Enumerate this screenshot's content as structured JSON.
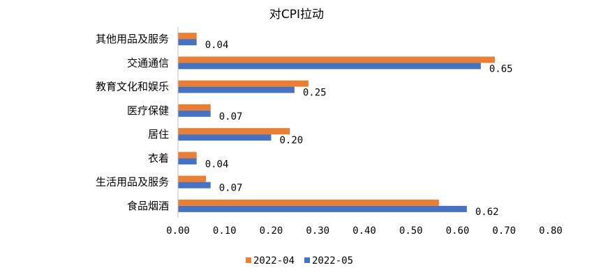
{
  "chart_data": {
    "type": "bar",
    "orientation": "horizontal",
    "title": "对CPI拉动",
    "categories": [
      "其他用品及服务",
      "交通通信",
      "教育文化和娱乐",
      "医疗保健",
      "居住",
      "衣着",
      "生活用品及服务",
      "食品烟酒"
    ],
    "series": [
      {
        "name": "2022-04",
        "values": [
          0.04,
          0.68,
          0.28,
          0.07,
          0.24,
          0.04,
          0.06,
          0.56
        ]
      },
      {
        "name": "2022-05",
        "values": [
          0.04,
          0.65,
          0.25,
          0.07,
          0.2,
          0.04,
          0.07,
          0.62
        ]
      }
    ],
    "data_labels": {
      "series": "2022-05",
      "labels": [
        "0.04",
        "0.65",
        "0.25",
        "0.07",
        "0.20",
        "0.04",
        "0.07",
        "0.62"
      ]
    },
    "xlim": [
      0,
      0.8
    ],
    "xticks": [
      "0.00",
      "0.10",
      "0.20",
      "0.30",
      "0.40",
      "0.50",
      "0.60",
      "0.70",
      "0.80"
    ],
    "grid": false,
    "legend_position": "bottom",
    "colors": {
      "2022-04": "#ED7D31",
      "2022-05": "#4472C4"
    }
  }
}
